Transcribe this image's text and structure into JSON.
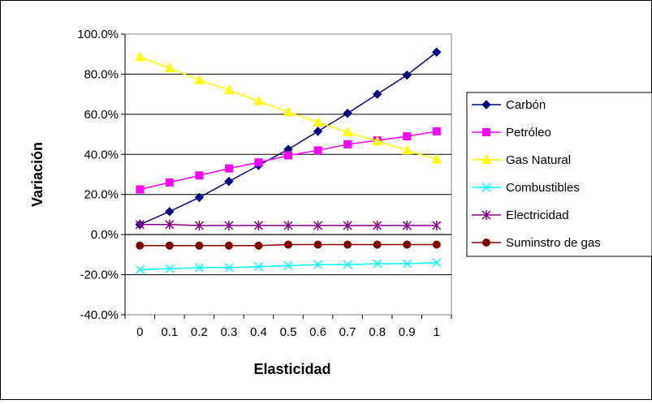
{
  "chart_data": {
    "type": "line",
    "xlabel": "Elasticidad",
    "ylabel": "Variación",
    "x": [
      "0",
      "0.1",
      "0.2",
      "0.3",
      "0.4",
      "0.5",
      "0.6",
      "0.7",
      "0.8",
      "0.9",
      "1"
    ],
    "ylim": [
      -40,
      100
    ],
    "yticks": [
      -40,
      -20,
      0,
      20,
      40,
      60,
      80,
      100
    ],
    "ytick_labels": [
      "-40.0%",
      "-20.0%",
      "0.0%",
      "20.0%",
      "40.0%",
      "60.0%",
      "80.0%",
      "100.0%"
    ],
    "grid": true,
    "legend_position": "right",
    "series": [
      {
        "name": "Carbón",
        "color": "#000080",
        "marker": "diamond",
        "values": [
          5.0,
          11.5,
          18.5,
          26.5,
          34.5,
          42.5,
          51.5,
          60.5,
          70.0,
          79.5,
          91.0
        ]
      },
      {
        "name": "Petróleo",
        "color": "#FF00FF",
        "marker": "square",
        "values": [
          22.5,
          26.0,
          29.5,
          33.0,
          36.0,
          39.5,
          42.0,
          45.0,
          47.0,
          49.0,
          51.5
        ]
      },
      {
        "name": "Gas Natural",
        "color": "#FFFF00",
        "marker": "triangle",
        "values": [
          88.5,
          83.0,
          77.0,
          72.0,
          66.5,
          61.0,
          56.0,
          51.0,
          46.5,
          42.0,
          37.5
        ]
      },
      {
        "name": "Combustibles",
        "color": "#00FFFF",
        "marker": "x",
        "values": [
          -17.5,
          -17.0,
          -16.5,
          -16.5,
          -16.0,
          -15.5,
          -15.0,
          -15.0,
          -14.5,
          -14.5,
          -14.0
        ]
      },
      {
        "name": "Electricidad",
        "color": "#800080",
        "marker": "star",
        "values": [
          5.0,
          5.0,
          4.5,
          4.5,
          4.5,
          4.5,
          4.5,
          4.5,
          4.5,
          4.5,
          4.5
        ]
      },
      {
        "name": "Suminstro de gas",
        "color": "#800000",
        "marker": "circle",
        "values": [
          -5.5,
          -5.5,
          -5.5,
          -5.5,
          -5.5,
          -5.0,
          -5.0,
          -5.0,
          -5.0,
          -5.0,
          -5.0
        ]
      }
    ]
  }
}
